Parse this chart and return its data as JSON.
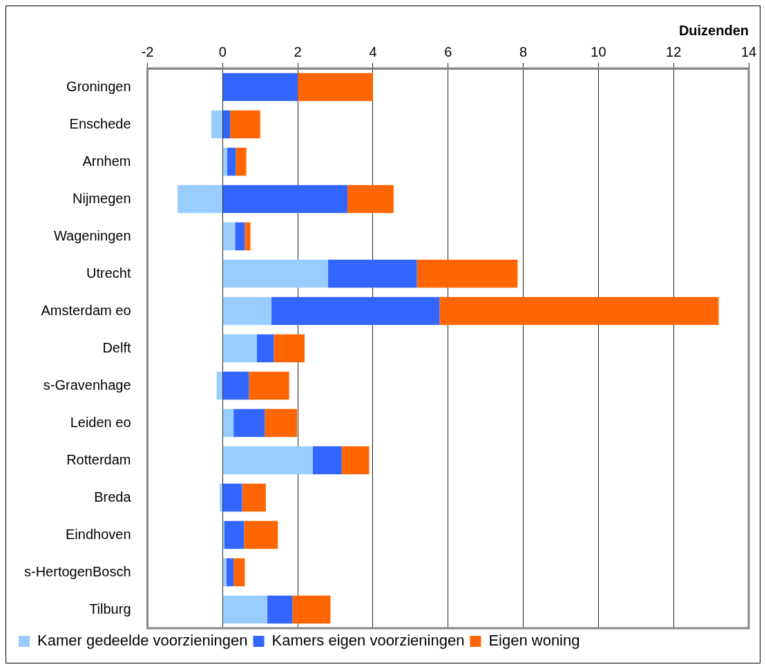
{
  "chart_data": {
    "type": "bar",
    "orientation": "horizontal",
    "stacked": true,
    "xlabel": "Duizenden",
    "categories": [
      "Groningen",
      "Enschede",
      "Arnhem",
      "Nijmegen",
      "Wageningen",
      "Utrecht",
      "Amsterdam eo",
      "Delft",
      "s-Gravenhage",
      "Leiden eo",
      "Rotterdam",
      "Breda",
      "Eindhoven",
      "s-HertogenBosch",
      "Tilburg"
    ],
    "series": [
      {
        "name": "Kamer gedeelde voorzieningen",
        "color": "#99ccff",
        "values": [
          0,
          -0.3,
          0.12,
          -1.2,
          0.33,
          2.8,
          1.3,
          0.91,
          -0.16,
          0.29,
          2.4,
          -0.08,
          0.04,
          0.1,
          1.19
        ]
      },
      {
        "name": "Kamers eigen voorzieningen",
        "color": "#3366ff",
        "values": [
          2.0,
          0.2,
          0.23,
          3.32,
          0.26,
          2.37,
          4.47,
          0.45,
          0.7,
          0.83,
          0.77,
          0.52,
          0.53,
          0.19,
          0.67
        ]
      },
      {
        "name": "Eigen woning",
        "color": "#ff6600",
        "values": [
          2.0,
          0.8,
          0.28,
          1.23,
          0.15,
          2.68,
          7.43,
          0.82,
          1.07,
          0.86,
          0.73,
          0.63,
          0.9,
          0.3,
          1.01
        ]
      }
    ],
    "xlim": [
      -2,
      14
    ],
    "xticks": [
      -2,
      0,
      2,
      4,
      6,
      8,
      10,
      12,
      14
    ],
    "grid": "x",
    "legend": "bottom"
  }
}
